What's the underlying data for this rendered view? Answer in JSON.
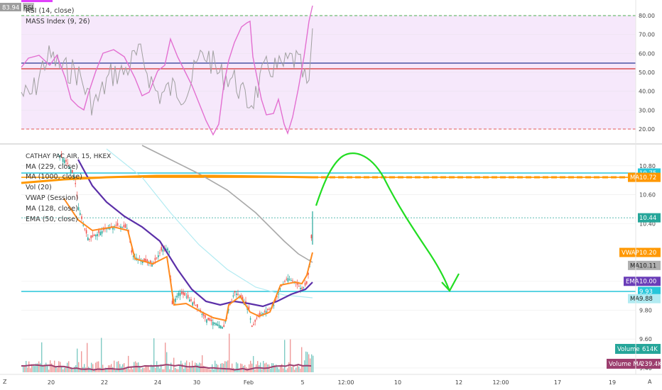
{
  "rsi_panel": {
    "top_badge_value": "83.94",
    "top_badge_sym": "RSI",
    "legend": [
      "RSI (14, close)",
      "MASS Index (9, 26)"
    ],
    "y_ticks": [
      "80.00",
      "70.00",
      "60.00",
      "50.00",
      "40.00",
      "30.00",
      "20.00"
    ],
    "y_values": [
      80,
      70,
      60,
      50,
      40,
      30,
      20
    ],
    "levels": {
      "upper": 80,
      "lower": 20,
      "blue": 55,
      "red": 51
    }
  },
  "price_panel": {
    "legend": [
      "CATHAY PAC AIR, 15, HKEX",
      "MA (229, close)",
      "MA (1000, close)",
      "Vol (20)",
      "VWAP (Session)",
      "MA (128, close)",
      "EMA (50, close)"
    ],
    "y_ticks": [
      "10.80",
      "10.60",
      "10.40",
      "10.00",
      "9.80",
      "9.60",
      "9.40"
    ],
    "y_values": [
      10.8,
      10.6,
      10.4,
      10.0,
      9.8,
      9.6,
      9.4
    ],
    "tags": [
      {
        "label": "",
        "value": "10.75",
        "color": "#26c6da",
        "y": 10.75
      },
      {
        "label": "MA",
        "value": "10.72",
        "color": "#ff9800",
        "y": 10.72
      },
      {
        "label": "",
        "value": "10.44",
        "color": "#26a69a",
        "y": 10.44
      },
      {
        "label": "VWAP",
        "value": "10.20",
        "color": "#ff9800",
        "y": 10.2
      },
      {
        "label": "MA",
        "value": "10.11",
        "color": "#b0b0b0",
        "y": 10.11
      },
      {
        "label": "EMA",
        "value": "10.00",
        "color": "#6a3db8",
        "y": 10.0
      },
      {
        "label": "",
        "value": "9.93",
        "color": "#26c6da",
        "y": 9.93
      },
      {
        "label": "MA",
        "value": "9.88",
        "color": "#b2ebf2",
        "y": 9.88
      }
    ],
    "volume_tags": [
      {
        "label": "Volume",
        "value": "614K",
        "color": "#26a69a"
      },
      {
        "label": "Volume MA",
        "value": "239.4K",
        "color": "#9c3e6e"
      }
    ],
    "h_lines": [
      {
        "y": 10.75,
        "color": "#26c6da"
      },
      {
        "y": 9.93,
        "color": "#26c6da"
      },
      {
        "y": 10.72,
        "color": "#ff9800"
      },
      {
        "y": 10.44,
        "color": "#26a69a"
      }
    ]
  },
  "time_axis": {
    "labels": [
      "20",
      "22",
      "24",
      "30",
      "Feb",
      "5",
      "12:00",
      "10",
      "12",
      "12:00",
      "17",
      "19"
    ],
    "left_icon": "Z",
    "right_icon": "A"
  },
  "colors": {
    "rsi": "#e36fd1",
    "mass": "#a0a0a0",
    "rsi_band": "#f6e8fb",
    "green_annotation": "#22dd22",
    "ma229": "#a8a8a8",
    "ma128": "#b2ebf2",
    "ema50": "#5b2fa8",
    "vwap": "#ff8a1f"
  }
}
